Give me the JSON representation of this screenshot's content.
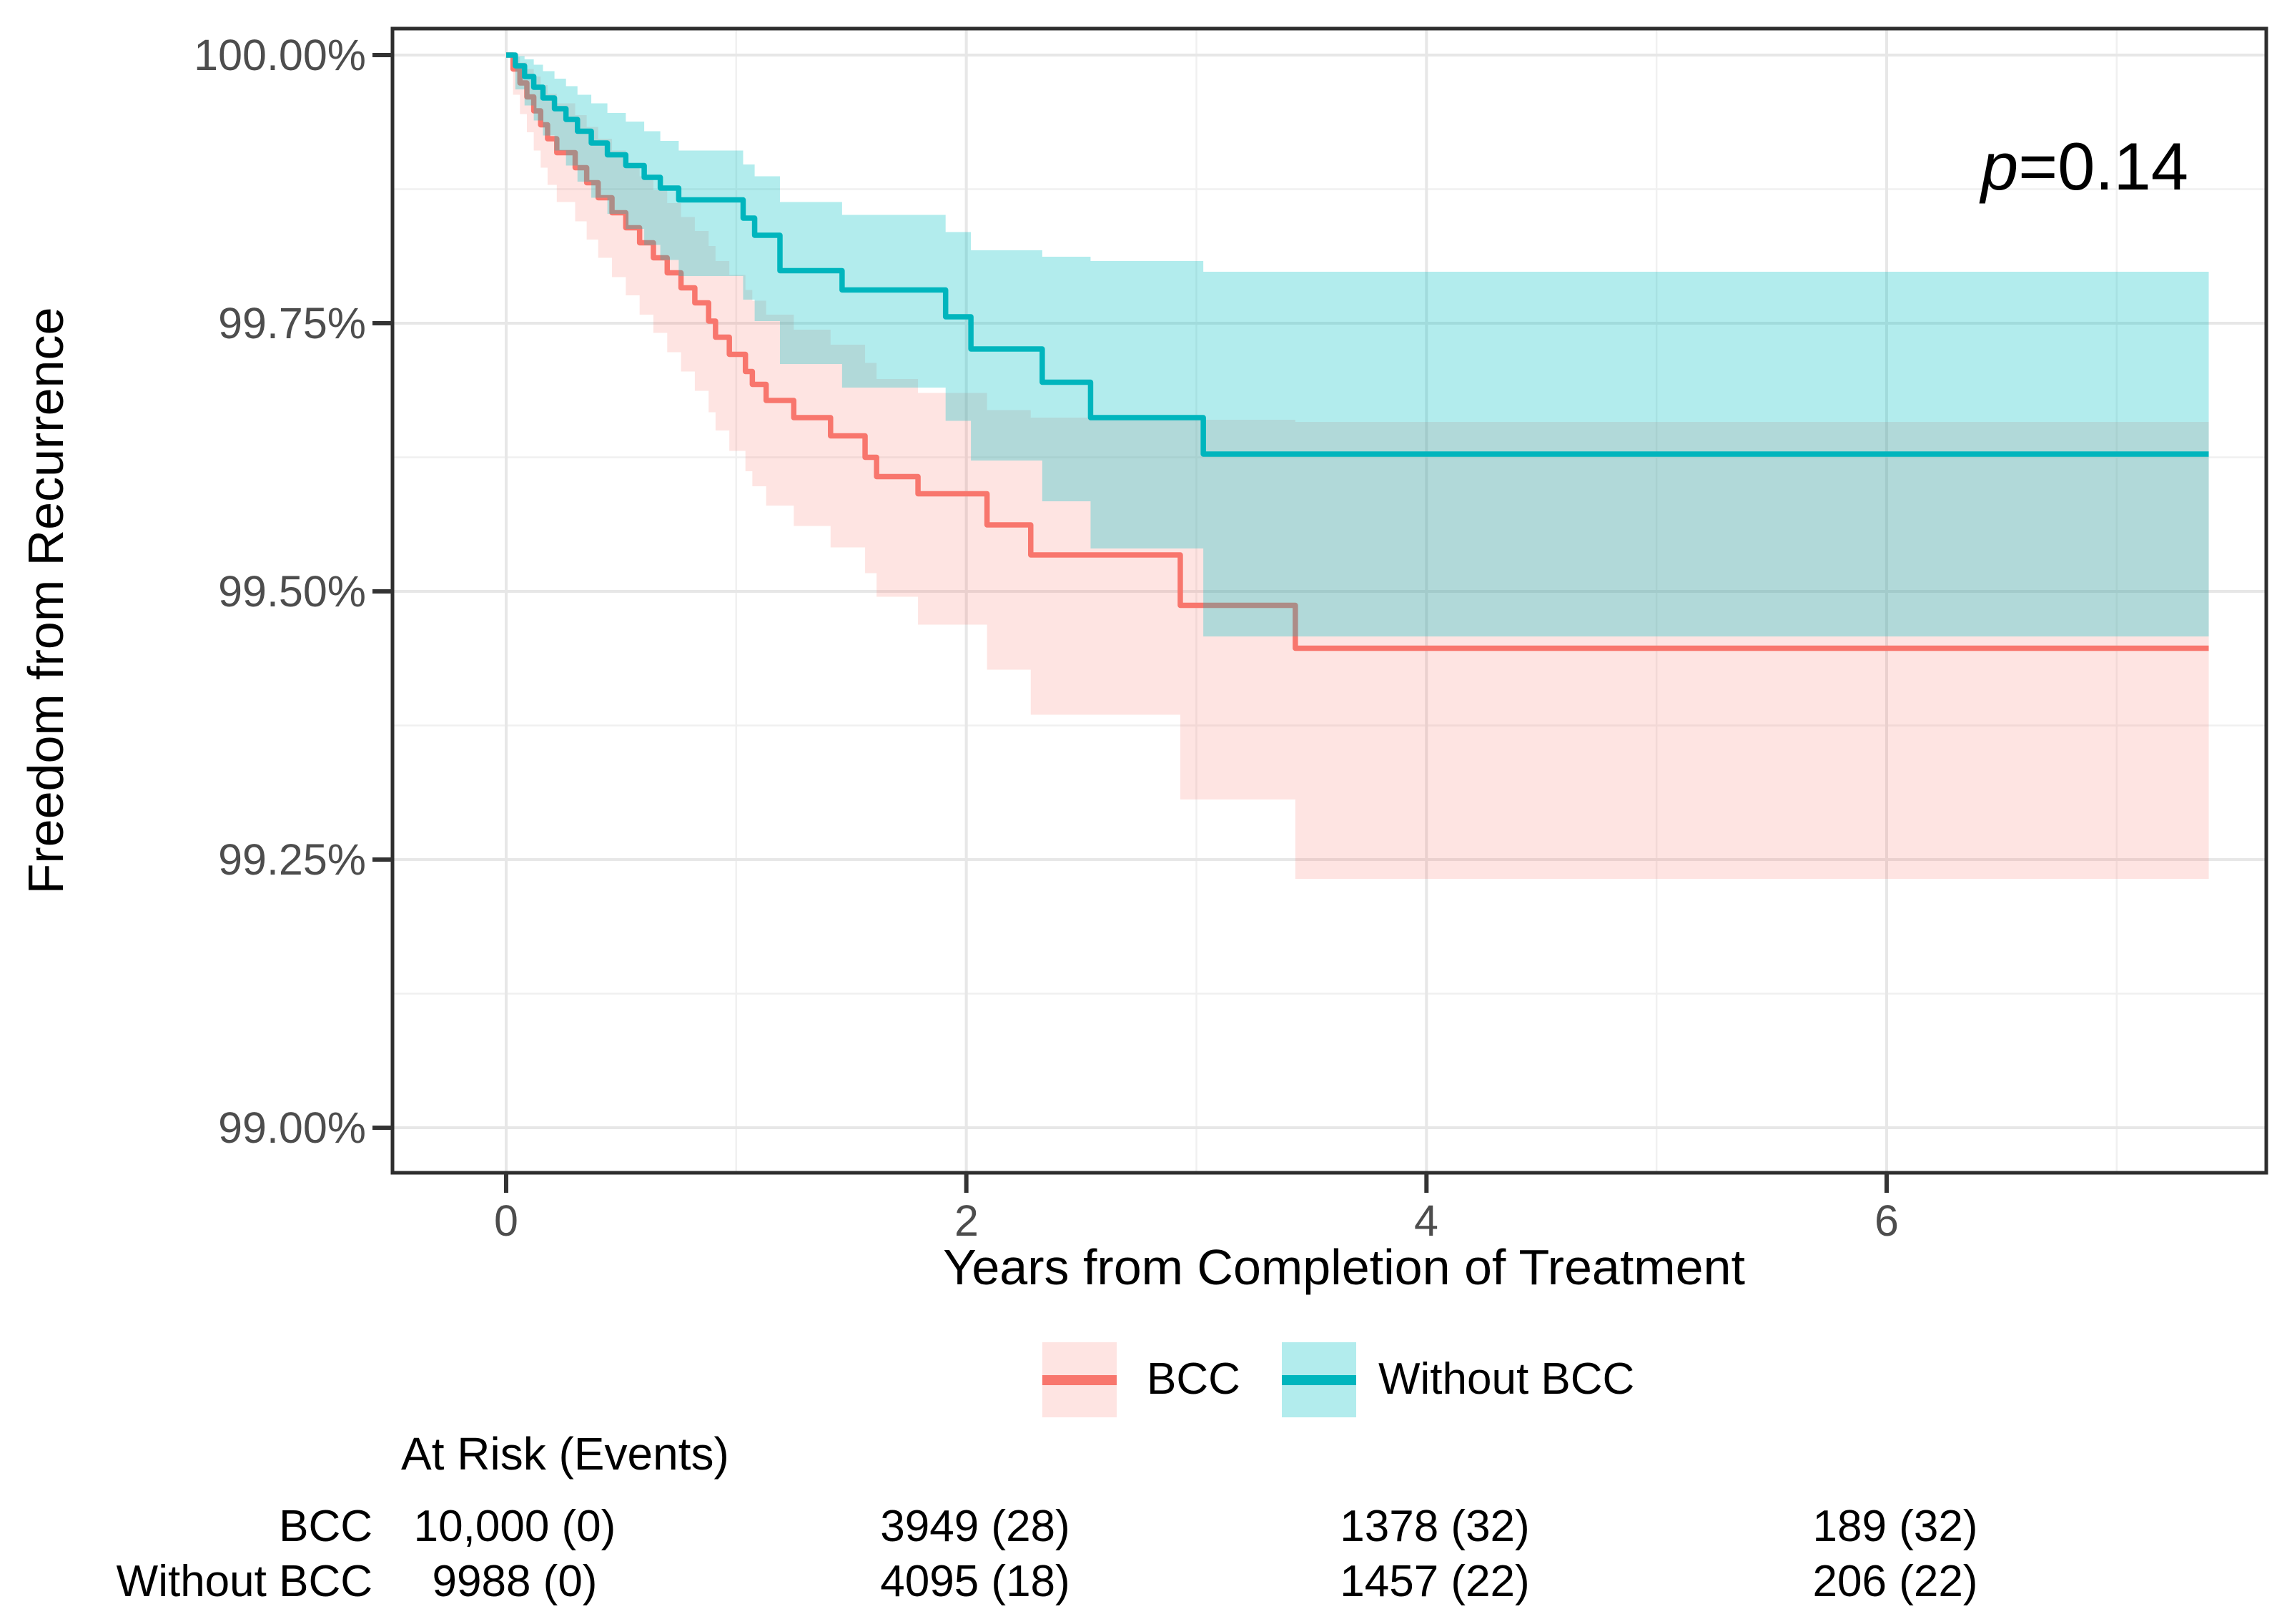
{
  "p_value": {
    "symbol": "p",
    "text": "=0.14"
  },
  "y_axis": {
    "title": "Freedom from Recurrence",
    "ticks": [
      {
        "label": "100.00%",
        "value": 100.0
      },
      {
        "label": "99.75%",
        "value": 99.75
      },
      {
        "label": "99.50%",
        "value": 99.5
      },
      {
        "label": "99.25%",
        "value": 99.25
      },
      {
        "label": "99.00%",
        "value": 99.0
      }
    ],
    "minor_breaks": [
      99.875,
      99.625,
      99.375,
      99.125
    ]
  },
  "x_axis": {
    "title": "Years from Completion of Treatment",
    "ticks": [
      {
        "label": "0",
        "value": 0
      },
      {
        "label": "2",
        "value": 2
      },
      {
        "label": "4",
        "value": 4
      },
      {
        "label": "6",
        "value": 6
      }
    ],
    "minor_breaks": [
      1,
      3,
      5,
      7
    ]
  },
  "legend": {
    "items": [
      {
        "label": "BCC",
        "line_color": "#F8766D",
        "fill_color": "rgba(248,118,109,0.20)"
      },
      {
        "label": "Without BCC",
        "line_color": "#00B5BD",
        "fill_color": "rgba(0,191,196,0.30)"
      }
    ]
  },
  "risk_table": {
    "header": "At Risk (Events)",
    "time_points": [
      0,
      2,
      4,
      6
    ],
    "rows": [
      {
        "label": "BCC",
        "values": [
          "10,000 (0)",
          "3949 (28)",
          "1378 (32)",
          "189 (32)"
        ]
      },
      {
        "label": "Without BCC",
        "values": [
          "9988 (0)",
          "4095 (18)",
          "1457 (22)",
          "206 (22)"
        ]
      }
    ]
  },
  "chart_data": {
    "type": "line",
    "subtype": "kaplan_meier_step_with_confidence_ribbons",
    "title": "",
    "xlabel": "Years from Completion of Treatment",
    "ylabel": "Freedom from Recurrence",
    "xlim": [
      -0.49,
      7.65
    ],
    "ylim": [
      98.958,
      100.025
    ],
    "grid": true,
    "legend_position": "bottom",
    "annotation": "p=0.14",
    "point_format": [
      "time_years",
      "survival_pct",
      "ci_lower_pct",
      "ci_upper_pct"
    ],
    "series": [
      {
        "name": "BCC",
        "color": "#F8766D",
        "fill": "rgba(248,118,109,0.20)",
        "t_end": 7.4,
        "step_points": [
          [
            0.0,
            100.0,
            100.0,
            100.0
          ],
          [
            0.03,
            99.987,
            99.963,
            99.998
          ],
          [
            0.06,
            99.974,
            99.945,
            99.993
          ],
          [
            0.09,
            99.961,
            99.928,
            99.987
          ],
          [
            0.12,
            99.948,
            99.911,
            99.98
          ],
          [
            0.15,
            99.935,
            99.895,
            99.972
          ],
          [
            0.18,
            99.922,
            99.879,
            99.964
          ],
          [
            0.22,
            99.909,
            99.863,
            99.955
          ],
          [
            0.3,
            99.895,
            99.845,
            99.944
          ],
          [
            0.35,
            99.881,
            99.828,
            99.933
          ],
          [
            0.4,
            99.867,
            99.811,
            99.922
          ],
          [
            0.46,
            99.853,
            99.793,
            99.911
          ],
          [
            0.52,
            99.839,
            99.776,
            99.899
          ],
          [
            0.58,
            99.825,
            99.758,
            99.887
          ],
          [
            0.64,
            99.811,
            99.741,
            99.874
          ],
          [
            0.7,
            99.797,
            99.723,
            99.862
          ],
          [
            0.76,
            99.783,
            99.705,
            99.849
          ],
          [
            0.82,
            99.769,
            99.687,
            99.836
          ],
          [
            0.88,
            99.752,
            99.667,
            99.822
          ],
          [
            0.91,
            99.737,
            99.65,
            99.808
          ],
          [
            0.97,
            99.721,
            99.631,
            99.795
          ],
          [
            1.04,
            99.705,
            99.612,
            99.781
          ],
          [
            1.07,
            99.693,
            99.598,
            99.771
          ],
          [
            1.13,
            99.678,
            99.58,
            99.758
          ],
          [
            1.25,
            99.662,
            99.561,
            99.744
          ],
          [
            1.41,
            99.645,
            99.541,
            99.73
          ],
          [
            1.56,
            99.625,
            99.517,
            99.713
          ],
          [
            1.61,
            99.607,
            99.495,
            99.698
          ],
          [
            1.79,
            99.591,
            99.469,
            99.685
          ],
          [
            2.09,
            99.562,
            99.427,
            99.669
          ],
          [
            2.28,
            99.534,
            99.385,
            99.662
          ],
          [
            2.93,
            99.487,
            99.306,
            99.66
          ],
          [
            3.43,
            99.447,
            99.232,
            99.658
          ]
        ]
      },
      {
        "name": "Without BCC",
        "color": "#00B5BD",
        "fill": "rgba(0,191,196,0.30)",
        "t_end": 7.4,
        "step_points": [
          [
            0.0,
            100.0,
            100.0,
            100.0
          ],
          [
            0.04,
            99.99,
            99.968,
            99.999
          ],
          [
            0.08,
            99.98,
            99.953,
            99.996
          ],
          [
            0.12,
            99.97,
            99.939,
            99.991
          ],
          [
            0.16,
            99.96,
            99.925,
            99.985
          ],
          [
            0.21,
            99.95,
            99.911,
            99.978
          ],
          [
            0.26,
            99.94,
            99.897,
            99.971
          ],
          [
            0.31,
            99.929,
            99.882,
            99.963
          ],
          [
            0.37,
            99.918,
            99.867,
            99.955
          ],
          [
            0.44,
            99.907,
            99.852,
            99.946
          ],
          [
            0.52,
            99.897,
            99.838,
            99.938
          ],
          [
            0.6,
            99.886,
            99.823,
            99.929
          ],
          [
            0.67,
            99.876,
            99.809,
            99.92
          ],
          [
            0.75,
            99.865,
            99.794,
            99.911
          ],
          [
            1.03,
            99.848,
            99.772,
            99.898
          ],
          [
            1.08,
            99.832,
            99.752,
            99.887
          ],
          [
            1.19,
            99.799,
            99.712,
            99.863
          ],
          [
            1.46,
            99.781,
            99.69,
            99.851
          ],
          [
            1.91,
            99.756,
            99.659,
            99.835
          ],
          [
            2.02,
            99.726,
            99.622,
            99.818
          ],
          [
            2.33,
            99.695,
            99.584,
            99.812
          ],
          [
            2.54,
            99.662,
            99.54,
            99.808
          ],
          [
            3.03,
            99.628,
            99.458,
            99.798
          ]
        ]
      }
    ]
  }
}
